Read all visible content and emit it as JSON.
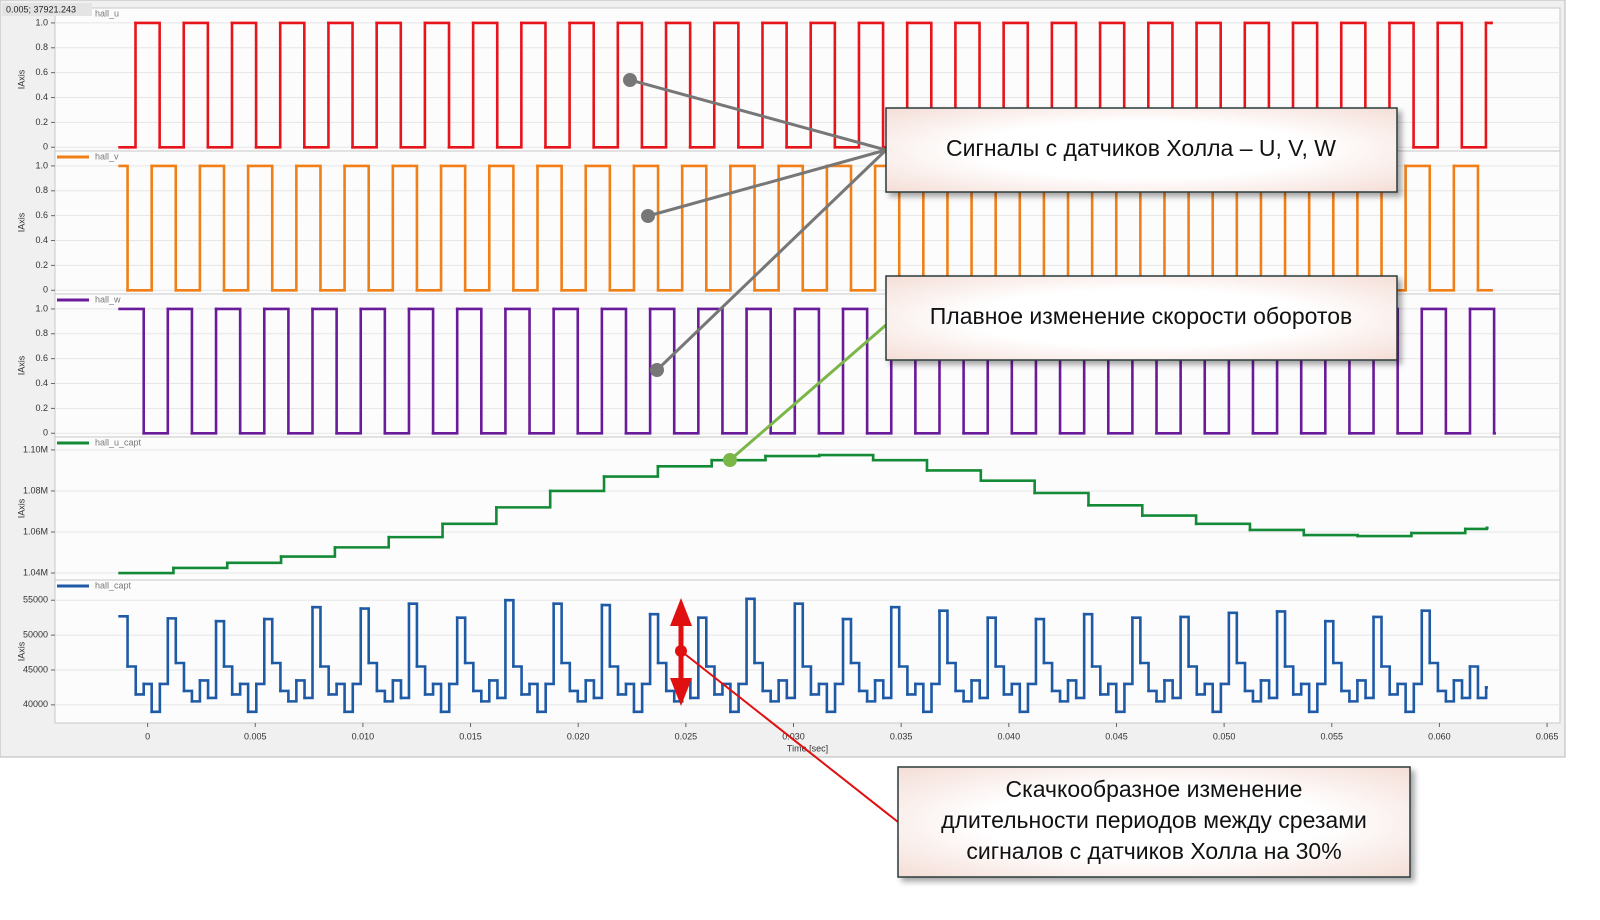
{
  "cursor_readout": "0.005; 37921.243",
  "callouts": [
    {
      "text": "Сигналы с датчиков Холла – U, V, W"
    },
    {
      "text": "Плавное изменение скорости оборотов"
    },
    {
      "lines": [
        "Скачкообразное изменение",
        "длительности периодов между срезами",
        "сигналов с датчиков Холла на 30%"
      ]
    }
  ],
  "chart_data": [
    {
      "type": "line",
      "step": true,
      "grid": true,
      "y_label": "IAxis",
      "xlim": [
        -0.0043,
        0.0656
      ],
      "ylim": [
        -0.03,
        1.12
      ],
      "yticks": [
        0,
        0.2,
        0.4,
        0.6,
        0.8,
        {
          "value": 1,
          "label": "1.0"
        }
      ],
      "x": [
        -0.0013,
        -0.00056,
        0.00056,
        0.00168,
        0.0028,
        0.00392,
        0.00504,
        0.00616,
        0.00728,
        0.0084,
        0.00952,
        0.01064,
        0.01176,
        0.01288,
        0.014,
        0.01512,
        0.01624,
        0.01736,
        0.01848,
        0.0196,
        0.02072,
        0.02184,
        0.02296,
        0.02408,
        0.0252,
        0.02632,
        0.02744,
        0.02856,
        0.02968,
        0.0308,
        0.03192,
        0.03304,
        0.03416,
        0.03528,
        0.0364,
        0.03752,
        0.03864,
        0.03976,
        0.04088,
        0.042,
        0.04312,
        0.04424,
        0.04536,
        0.04648,
        0.0476,
        0.04872,
        0.04984,
        0.05096,
        0.05208,
        0.0532,
        0.05432,
        0.05544,
        0.05656,
        0.05768,
        0.0588,
        0.05992,
        0.06104,
        0.06216,
        0.0624
      ],
      "series": [
        {
          "name": "hall_u",
          "color": "#e8141b",
          "values": [
            0,
            1,
            0,
            1,
            0,
            1,
            0,
            1,
            0,
            1,
            0,
            1,
            0,
            1,
            0,
            1,
            0,
            1,
            0,
            1,
            0,
            1,
            0,
            1,
            0,
            1,
            0,
            1,
            0,
            1,
            0,
            1,
            0,
            1,
            0,
            1,
            0,
            1,
            0,
            1,
            0,
            1,
            0,
            1,
            0,
            1,
            0,
            1,
            0,
            1,
            0,
            1,
            0,
            1,
            0,
            1,
            0,
            1,
            1
          ]
        }
      ]
    },
    {
      "type": "line",
      "step": true,
      "grid": true,
      "y_label": "IAxis",
      "xlim": [
        -0.0043,
        0.0656
      ],
      "ylim": [
        -0.03,
        1.12
      ],
      "yticks": [
        0,
        0.2,
        0.4,
        0.6,
        0.8,
        {
          "value": 1,
          "label": "1.0"
        }
      ],
      "x": [
        -0.0013,
        -0.00093,
        0.00019,
        0.00131,
        0.00243,
        0.00355,
        0.00467,
        0.00579,
        0.00691,
        0.00803,
        0.00915,
        0.01027,
        0.01139,
        0.01251,
        0.01363,
        0.01475,
        0.01587,
        0.01699,
        0.01811,
        0.01923,
        0.02035,
        0.02147,
        0.02259,
        0.02371,
        0.02483,
        0.02595,
        0.02707,
        0.02819,
        0.02931,
        0.03043,
        0.03155,
        0.03267,
        0.03379,
        0.03491,
        0.03603,
        0.03715,
        0.03827,
        0.03939,
        0.04051,
        0.04163,
        0.04275,
        0.04387,
        0.04499,
        0.04611,
        0.04723,
        0.04835,
        0.04947,
        0.05059,
        0.05171,
        0.05283,
        0.05395,
        0.05507,
        0.05619,
        0.05731,
        0.05843,
        0.05955,
        0.06067,
        0.06179,
        0.0624
      ],
      "series": [
        {
          "name": "hall_v",
          "color": "#f07f17",
          "values": [
            1,
            0,
            1,
            0,
            1,
            0,
            1,
            0,
            1,
            0,
            1,
            0,
            1,
            0,
            1,
            0,
            1,
            0,
            1,
            0,
            1,
            0,
            1,
            0,
            1,
            0,
            1,
            0,
            1,
            0,
            1,
            0,
            1,
            0,
            1,
            0,
            1,
            0,
            1,
            0,
            1,
            0,
            1,
            0,
            1,
            0,
            1,
            0,
            1,
            0,
            1,
            0,
            1,
            0,
            1,
            0,
            1,
            0,
            0
          ]
        }
      ]
    },
    {
      "type": "line",
      "step": true,
      "grid": true,
      "y_label": "IAxis",
      "xlim": [
        -0.0043,
        0.0656
      ],
      "ylim": [
        -0.03,
        1.12
      ],
      "yticks": [
        0,
        0.2,
        0.4,
        0.6,
        0.8,
        {
          "value": 1,
          "label": "1.0"
        }
      ],
      "x": [
        -0.0013,
        -0.00018,
        0.00094,
        0.00206,
        0.00318,
        0.0043,
        0.00542,
        0.00654,
        0.00766,
        0.00878,
        0.0099,
        0.01102,
        0.01214,
        0.01326,
        0.01438,
        0.0155,
        0.01662,
        0.01774,
        0.01886,
        0.01998,
        0.0211,
        0.02222,
        0.02334,
        0.02446,
        0.02558,
        0.0267,
        0.02782,
        0.02894,
        0.03006,
        0.03118,
        0.0323,
        0.03342,
        0.03454,
        0.03566,
        0.03678,
        0.0379,
        0.03902,
        0.04014,
        0.04126,
        0.04238,
        0.0435,
        0.04462,
        0.04574,
        0.04686,
        0.04798,
        0.0491,
        0.05022,
        0.05134,
        0.05246,
        0.05358,
        0.0547,
        0.05582,
        0.05694,
        0.05806,
        0.05918,
        0.0603,
        0.06142,
        0.06254
      ],
      "series": [
        {
          "name": "hall_w",
          "color": "#6a1b9a",
          "values": [
            1,
            0,
            1,
            0,
            1,
            0,
            1,
            0,
            1,
            0,
            1,
            0,
            1,
            0,
            1,
            0,
            1,
            0,
            1,
            0,
            1,
            0,
            1,
            0,
            1,
            0,
            1,
            0,
            1,
            0,
            1,
            0,
            1,
            0,
            1,
            0,
            1,
            0,
            1,
            0,
            1,
            0,
            1,
            0,
            1,
            0,
            1,
            0,
            1,
            0,
            1,
            0,
            1,
            0,
            1,
            0,
            1,
            0
          ]
        }
      ]
    },
    {
      "type": "line",
      "step": true,
      "grid": true,
      "y_label": "IAxis",
      "xlim": [
        -0.0043,
        0.0656
      ],
      "ylim": [
        1036600,
        1106300
      ],
      "yticks": [
        {
          "value": 1040000,
          "label": "1.04M"
        },
        {
          "value": 1060000,
          "label": "1.06M"
        },
        {
          "value": 1080000,
          "label": "1.08M"
        },
        {
          "value": 1100000,
          "label": "1.10M"
        }
      ],
      "x": [
        -0.0013,
        0.0012,
        0.0037,
        0.0062,
        0.0087,
        0.0112,
        0.0137,
        0.0162,
        0.0187,
        0.0212,
        0.0237,
        0.0262,
        0.0287,
        0.0312,
        0.0337,
        0.0362,
        0.0387,
        0.0412,
        0.0437,
        0.0462,
        0.0487,
        0.0512,
        0.0537,
        0.0562,
        0.0587,
        0.0612,
        0.0622
      ],
      "series": [
        {
          "name": "hall_u_capt",
          "color": "#138a36",
          "values": [
            1040000,
            1042500,
            1045000,
            1048000,
            1052500,
            1057500,
            1064000,
            1072000,
            1080000,
            1087000,
            1092000,
            1095000,
            1097000,
            1097500,
            1095000,
            1090000,
            1085000,
            1079000,
            1073000,
            1068000,
            1064000,
            1061000,
            1058500,
            1058000,
            1059500,
            1061500,
            1062000
          ]
        }
      ]
    },
    {
      "type": "line",
      "step": true,
      "grid": true,
      "y_label": "IAxis",
      "x_label": "Time [sec]",
      "xlim": [
        -0.0043,
        0.0656
      ],
      "ylim": [
        37400,
        57900
      ],
      "yticks": [
        40000,
        45000,
        50000,
        55000
      ],
      "xticks": [
        0,
        0.005,
        {
          "value": 0.01,
          "label": "0.010"
        },
        0.015,
        {
          "value": 0.02,
          "label": "0.020"
        },
        0.025,
        {
          "value": 0.03,
          "label": "0.030"
        },
        0.035,
        {
          "value": 0.04,
          "label": "0.040"
        },
        0.045,
        {
          "value": 0.05,
          "label": "0.050"
        },
        0.055,
        {
          "value": 0.06,
          "label": "0.060"
        },
        0.065
      ],
      "x": [
        -0.0013,
        -0.00093,
        -0.00055,
        -0.00018,
        0.00019,
        0.00057,
        0.00094,
        0.00131,
        0.00169,
        0.00206,
        0.00243,
        0.00281,
        0.00318,
        0.00355,
        0.00393,
        0.0043,
        0.00467,
        0.00505,
        0.00542,
        0.00579,
        0.00617,
        0.00654,
        0.00691,
        0.00729,
        0.00766,
        0.00803,
        0.00841,
        0.00878,
        0.00915,
        0.00953,
        0.0099,
        0.01027,
        0.01065,
        0.01102,
        0.01139,
        0.01177,
        0.01214,
        0.01251,
        0.01289,
        0.01326,
        0.01363,
        0.01401,
        0.01438,
        0.01475,
        0.01513,
        0.0155,
        0.01587,
        0.01625,
        0.01662,
        0.01699,
        0.01737,
        0.01774,
        0.01811,
        0.01849,
        0.01886,
        0.01923,
        0.01961,
        0.01998,
        0.02035,
        0.02073,
        0.0211,
        0.02147,
        0.02185,
        0.02222,
        0.02259,
        0.02297,
        0.02334,
        0.02371,
        0.02409,
        0.02446,
        0.02483,
        0.02521,
        0.02558,
        0.02595,
        0.02633,
        0.0267,
        0.02707,
        0.02745,
        0.02782,
        0.02819,
        0.02857,
        0.02894,
        0.02931,
        0.02969,
        0.03006,
        0.03043,
        0.03081,
        0.03118,
        0.03155,
        0.03193,
        0.0323,
        0.03267,
        0.03305,
        0.03342,
        0.03379,
        0.03417,
        0.03454,
        0.03491,
        0.03529,
        0.03566,
        0.03603,
        0.03641,
        0.03678,
        0.03715,
        0.03753,
        0.0379,
        0.03827,
        0.03865,
        0.03902,
        0.03939,
        0.03977,
        0.04014,
        0.04051,
        0.04089,
        0.04126,
        0.04163,
        0.04201,
        0.04238,
        0.04275,
        0.04313,
        0.0435,
        0.04387,
        0.04425,
        0.04462,
        0.04499,
        0.04537,
        0.04574,
        0.04611,
        0.04649,
        0.04686,
        0.04723,
        0.04761,
        0.04798,
        0.04835,
        0.04873,
        0.0491,
        0.04947,
        0.04985,
        0.05022,
        0.05059,
        0.05097,
        0.05134,
        0.05171,
        0.05209,
        0.05246,
        0.05283,
        0.05321,
        0.05358,
        0.05395,
        0.05433,
        0.0547,
        0.05507,
        0.05545,
        0.05582,
        0.05619,
        0.05657,
        0.05694,
        0.05731,
        0.05769,
        0.05806,
        0.05843,
        0.05881,
        0.05918,
        0.05955,
        0.05993,
        0.0603,
        0.06067,
        0.06105,
        0.06142,
        0.06179,
        0.06217
      ],
      "series": [
        {
          "name": "hall_capt",
          "color": "#1f5aa6",
          "values": [
            52700,
            45500,
            41500,
            43000,
            39000,
            43000,
            52400,
            46000,
            42000,
            40500,
            43500,
            41000,
            52000,
            45500,
            41500,
            43000,
            39000,
            43000,
            52300,
            46000,
            42000,
            40500,
            43500,
            41000,
            54000,
            45500,
            41500,
            43000,
            39000,
            43000,
            53800,
            46000,
            42000,
            40500,
            43500,
            41000,
            54500,
            45500,
            41500,
            43000,
            39000,
            43000,
            52500,
            46000,
            42000,
            40500,
            43500,
            41000,
            55000,
            45500,
            41500,
            43000,
            39000,
            43000,
            54500,
            46000,
            42000,
            40500,
            43500,
            41000,
            54300,
            45500,
            41500,
            43000,
            39000,
            43000,
            53000,
            46000,
            42000,
            40500,
            43500,
            41000,
            52500,
            45500,
            41500,
            43000,
            39000,
            43000,
            55200,
            46000,
            42000,
            40500,
            43500,
            41000,
            54500,
            45500,
            41500,
            43000,
            39000,
            43000,
            52300,
            46000,
            42000,
            40500,
            43500,
            41000,
            54000,
            45500,
            41500,
            43000,
            39000,
            43000,
            53500,
            46000,
            42000,
            40500,
            43500,
            41000,
            52500,
            45500,
            41500,
            43000,
            39000,
            43000,
            52300,
            46000,
            42000,
            40500,
            43500,
            41000,
            53000,
            45500,
            41500,
            43000,
            39000,
            43000,
            52500,
            46000,
            42000,
            40500,
            43500,
            41000,
            52600,
            45500,
            41500,
            43000,
            39000,
            43000,
            53200,
            46000,
            42000,
            40500,
            43500,
            41000,
            53400,
            45500,
            41500,
            43000,
            39000,
            43000,
            52000,
            46000,
            42000,
            40500,
            43500,
            41000,
            52600,
            45500,
            41500,
            43000,
            39000,
            43000,
            53500,
            46000,
            42000,
            40500,
            43500,
            41000,
            45500,
            41000,
            42500
          ]
        }
      ]
    }
  ]
}
